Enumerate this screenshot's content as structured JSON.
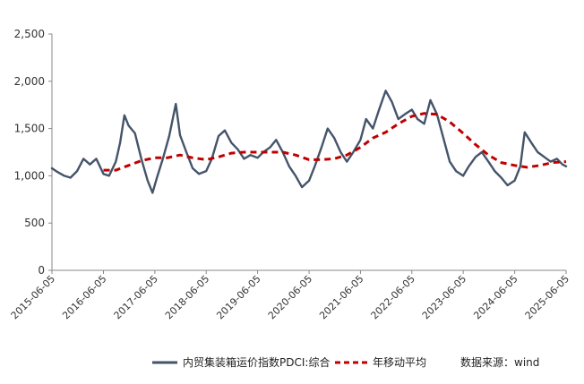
{
  "chart_data": {
    "type": "line",
    "x_ticks": [
      "2015-06-05",
      "2016-06-05",
      "2017-06-05",
      "2018-06-05",
      "2019-06-05",
      "2020-06-05",
      "2021-06-05",
      "2022-06-05",
      "2023-06-05",
      "2024-06-05",
      "2025-06-05"
    ],
    "y_ticks": [
      "0",
      "500",
      "1,000",
      "1,500",
      "2,000",
      "2,500"
    ],
    "ylim": [
      0,
      2500
    ],
    "x_range": [
      "2015-06-05",
      "2025-06-05"
    ],
    "grid": false,
    "legend_position": "bottom",
    "source": "数据来源：wind",
    "series": [
      {
        "name": "内贸集装箱运价指数PDCI:综合",
        "color": "#44546a",
        "style": "solid",
        "points": [
          [
            "2015-06-05",
            1080
          ],
          [
            "2015-07-15",
            1040
          ],
          [
            "2015-09-01",
            1000
          ],
          [
            "2015-10-15",
            980
          ],
          [
            "2015-12-01",
            1050
          ],
          [
            "2016-01-15",
            1180
          ],
          [
            "2016-03-01",
            1120
          ],
          [
            "2016-04-15",
            1180
          ],
          [
            "2016-06-05",
            1020
          ],
          [
            "2016-07-15",
            1000
          ],
          [
            "2016-09-01",
            1150
          ],
          [
            "2016-10-01",
            1350
          ],
          [
            "2016-11-01",
            1640
          ],
          [
            "2016-12-01",
            1530
          ],
          [
            "2017-01-15",
            1450
          ],
          [
            "2017-03-01",
            1180
          ],
          [
            "2017-04-15",
            950
          ],
          [
            "2017-05-20",
            820
          ],
          [
            "2017-06-20",
            980
          ],
          [
            "2017-08-01",
            1180
          ],
          [
            "2017-09-15",
            1420
          ],
          [
            "2017-11-01",
            1760
          ],
          [
            "2017-12-01",
            1430
          ],
          [
            "2018-01-15",
            1250
          ],
          [
            "2018-03-01",
            1080
          ],
          [
            "2018-04-15",
            1020
          ],
          [
            "2018-06-05",
            1050
          ],
          [
            "2018-07-15",
            1180
          ],
          [
            "2018-09-01",
            1420
          ],
          [
            "2018-10-15",
            1480
          ],
          [
            "2018-12-01",
            1350
          ],
          [
            "2019-01-15",
            1280
          ],
          [
            "2019-03-01",
            1180
          ],
          [
            "2019-04-15",
            1220
          ],
          [
            "2019-06-05",
            1190
          ],
          [
            "2019-07-15",
            1250
          ],
          [
            "2019-09-01",
            1300
          ],
          [
            "2019-10-15",
            1380
          ],
          [
            "2019-12-01",
            1250
          ],
          [
            "2020-01-15",
            1100
          ],
          [
            "2020-03-01",
            1000
          ],
          [
            "2020-04-15",
            880
          ],
          [
            "2020-06-05",
            950
          ],
          [
            "2020-07-15",
            1100
          ],
          [
            "2020-09-01",
            1300
          ],
          [
            "2020-10-15",
            1500
          ],
          [
            "2020-12-01",
            1400
          ],
          [
            "2021-01-15",
            1250
          ],
          [
            "2021-03-01",
            1150
          ],
          [
            "2021-04-15",
            1250
          ],
          [
            "2021-06-05",
            1380
          ],
          [
            "2021-07-15",
            1600
          ],
          [
            "2021-09-01",
            1500
          ],
          [
            "2021-10-15",
            1700
          ],
          [
            "2021-12-01",
            1900
          ],
          [
            "2022-01-15",
            1780
          ],
          [
            "2022-03-01",
            1600
          ],
          [
            "2022-04-15",
            1650
          ],
          [
            "2022-06-05",
            1700
          ],
          [
            "2022-07-15",
            1600
          ],
          [
            "2022-09-01",
            1550
          ],
          [
            "2022-10-15",
            1800
          ],
          [
            "2022-12-01",
            1650
          ],
          [
            "2023-01-15",
            1400
          ],
          [
            "2023-03-01",
            1150
          ],
          [
            "2023-04-15",
            1050
          ],
          [
            "2023-06-05",
            1000
          ],
          [
            "2023-07-15",
            1100
          ],
          [
            "2023-09-01",
            1200
          ],
          [
            "2023-10-15",
            1250
          ],
          [
            "2023-12-01",
            1150
          ],
          [
            "2024-01-15",
            1050
          ],
          [
            "2024-03-01",
            980
          ],
          [
            "2024-04-15",
            900
          ],
          [
            "2024-06-05",
            950
          ],
          [
            "2024-07-15",
            1100
          ],
          [
            "2024-08-15",
            1460
          ],
          [
            "2024-10-01",
            1350
          ],
          [
            "2024-11-15",
            1250
          ],
          [
            "2025-01-01",
            1200
          ],
          [
            "2025-02-15",
            1150
          ],
          [
            "2025-04-01",
            1180
          ],
          [
            "2025-05-10",
            1120
          ],
          [
            "2025-06-05",
            1100
          ]
        ]
      },
      {
        "name": "年移动平均",
        "color": "#c00000",
        "style": "dashed",
        "points": [
          [
            "2016-06-05",
            1060
          ],
          [
            "2016-09-01",
            1060
          ],
          [
            "2016-12-01",
            1110
          ],
          [
            "2017-03-01",
            1160
          ],
          [
            "2017-06-05",
            1190
          ],
          [
            "2017-09-01",
            1190
          ],
          [
            "2017-12-01",
            1220
          ],
          [
            "2018-03-01",
            1190
          ],
          [
            "2018-06-05",
            1170
          ],
          [
            "2018-09-01",
            1200
          ],
          [
            "2018-12-01",
            1240
          ],
          [
            "2019-03-01",
            1250
          ],
          [
            "2019-06-05",
            1250
          ],
          [
            "2019-09-01",
            1250
          ],
          [
            "2019-12-01",
            1250
          ],
          [
            "2020-03-01",
            1220
          ],
          [
            "2020-06-05",
            1170
          ],
          [
            "2020-09-01",
            1170
          ],
          [
            "2020-12-01",
            1180
          ],
          [
            "2021-03-01",
            1220
          ],
          [
            "2021-06-05",
            1300
          ],
          [
            "2021-09-01",
            1400
          ],
          [
            "2021-12-01",
            1460
          ],
          [
            "2022-03-01",
            1550
          ],
          [
            "2022-06-05",
            1630
          ],
          [
            "2022-09-01",
            1660
          ],
          [
            "2022-12-01",
            1650
          ],
          [
            "2023-03-01",
            1570
          ],
          [
            "2023-06-05",
            1450
          ],
          [
            "2023-09-01",
            1330
          ],
          [
            "2023-12-01",
            1220
          ],
          [
            "2024-03-01",
            1140
          ],
          [
            "2024-06-05",
            1110
          ],
          [
            "2024-09-01",
            1090
          ],
          [
            "2024-12-01",
            1110
          ],
          [
            "2025-03-01",
            1140
          ],
          [
            "2025-06-05",
            1150
          ]
        ]
      }
    ]
  }
}
